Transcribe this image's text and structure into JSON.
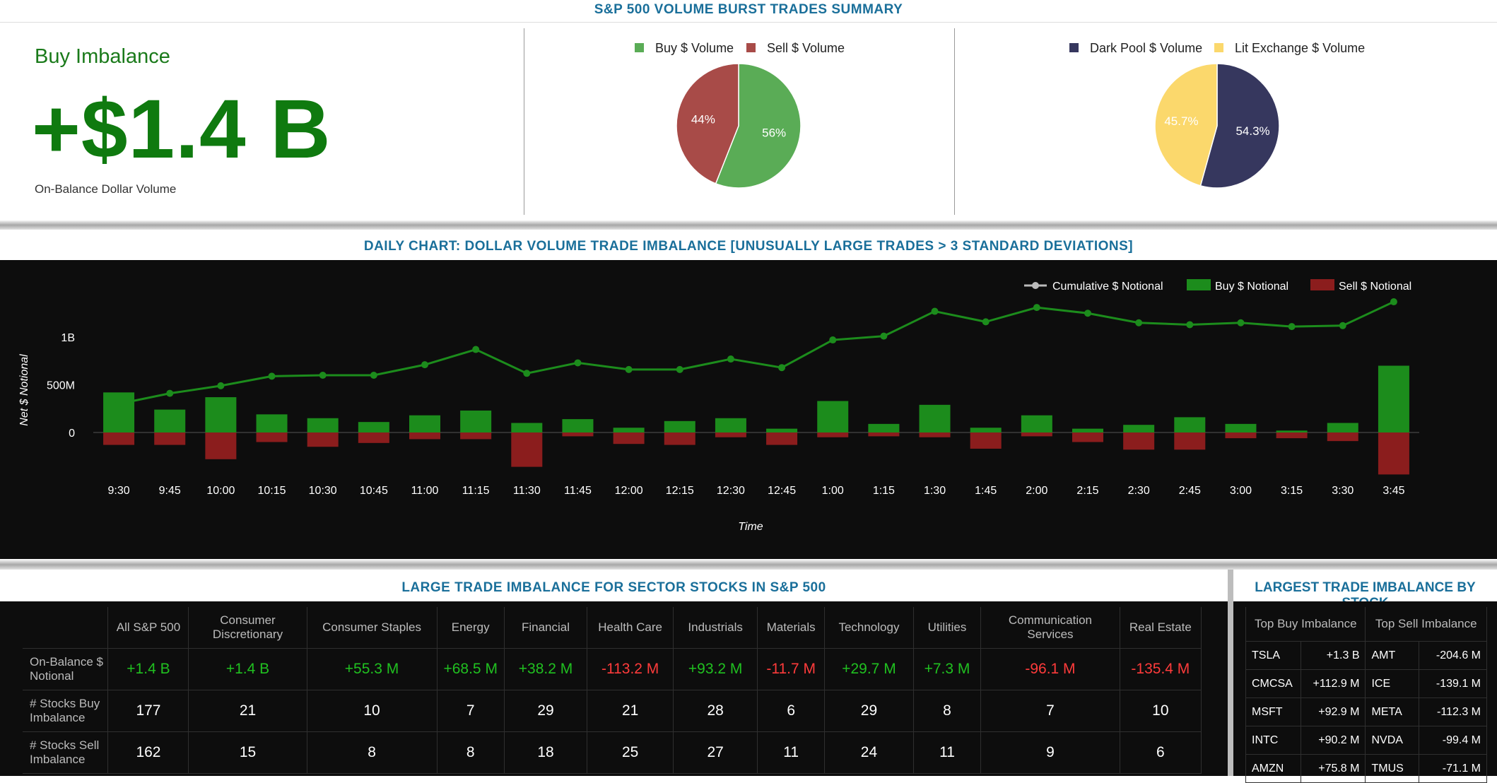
{
  "summary": {
    "title": "S&P 500 VOLUME BURST TRADES SUMMARY",
    "imbalance_label": "Buy Imbalance",
    "imbalance_value": "+$1.4 B",
    "imbalance_caption": "On-Balance Dollar Volume",
    "accent_color": "#1a7a1a"
  },
  "chart_data": [
    {
      "type": "pie",
      "labels": [
        "Buy $ Volume",
        "Sell $ Volume"
      ],
      "values": [
        56,
        44
      ],
      "slice_labels": [
        "56%",
        "44%"
      ],
      "colors": [
        "#5aac56",
        "#a84b48"
      ]
    },
    {
      "type": "pie",
      "labels": [
        "Dark Pool $ Volume",
        "Lit Exchange $ Volume"
      ],
      "values": [
        54.3,
        45.7
      ],
      "slice_labels": [
        "54.3%",
        "45.7%"
      ],
      "colors": [
        "#36375e",
        "#fbd86c"
      ]
    },
    {
      "type": "bar",
      "title": "DAILY CHART: DOLLAR VOLUME TRADE IMBALANCE [UNUSUALLY LARGE TRADES > 3 STANDARD DEVIATIONS]",
      "xlabel": "Time",
      "ylabel": "Net $ Notional",
      "ylim": [
        -300000000,
        1200000000
      ],
      "yticks": [
        {
          "v": 0,
          "label": "0"
        },
        {
          "v": 500000000,
          "label": "500M"
        },
        {
          "v": 1000000000,
          "label": "1B"
        }
      ],
      "grid": false,
      "legend": "top-right",
      "categories": [
        "9:30",
        "9:45",
        "10:00",
        "10:15",
        "10:30",
        "10:45",
        "11:00",
        "11:15",
        "11:30",
        "11:45",
        "12:00",
        "12:15",
        "12:30",
        "12:45",
        "1:00",
        "1:15",
        "1:30",
        "1:45",
        "2:00",
        "2:15",
        "2:30",
        "2:45",
        "3:00",
        "3:15",
        "3:30",
        "3:45"
      ],
      "series": [
        {
          "name": "Cumulative $ Notional",
          "kind": "line",
          "color": "#1c8c1c",
          "values": [
            300000000,
            410000000,
            490000000,
            590000000,
            600000000,
            600000000,
            710000000,
            870000000,
            620000000,
            730000000,
            660000000,
            660000000,
            770000000,
            680000000,
            970000000,
            1010000000,
            1270000000,
            1160000000,
            1310000000,
            1250000000,
            1150000000,
            1130000000,
            1150000000,
            1110000000,
            1120000000,
            1370000000
          ]
        },
        {
          "name": "Buy $ Notional",
          "kind": "bar",
          "color": "#1c8c1c",
          "values": [
            420000000,
            240000000,
            370000000,
            190000000,
            150000000,
            110000000,
            180000000,
            230000000,
            100000000,
            140000000,
            50000000,
            120000000,
            150000000,
            40000000,
            330000000,
            90000000,
            290000000,
            50000000,
            180000000,
            40000000,
            80000000,
            160000000,
            90000000,
            20000000,
            100000000,
            700000000
          ]
        },
        {
          "name": "Sell $ Notional",
          "kind": "bar",
          "color": "#8b1d1d",
          "values": [
            -130000000,
            -130000000,
            -280000000,
            -100000000,
            -150000000,
            -110000000,
            -70000000,
            -70000000,
            -360000000,
            -40000000,
            -120000000,
            -130000000,
            -50000000,
            -130000000,
            -50000000,
            -40000000,
            -50000000,
            -170000000,
            -40000000,
            -100000000,
            -180000000,
            -180000000,
            -60000000,
            -60000000,
            -90000000,
            -440000000
          ]
        }
      ]
    }
  ],
  "sector": {
    "title": "LARGE TRADE IMBALANCE FOR SECTOR STOCKS IN S&P 500",
    "headers": [
      "All S&P 500",
      "Consumer Discretionary",
      "Consumer Staples",
      "Energy",
      "Financial",
      "Health Care",
      "Industrials",
      "Materials",
      "Technology",
      "Utilities",
      "Communication Services",
      "Real Estate"
    ],
    "rows": [
      {
        "label": "On-Balance $ Notional",
        "values": [
          "+1.4 B",
          "+1.4 B",
          "+55.3 M",
          "+68.5 M",
          "+38.2 M",
          "-113.2 M",
          "+93.2 M",
          "-11.7 M",
          "+29.7 M",
          "+7.3 M",
          "-96.1 M",
          "-135.4 M"
        ]
      },
      {
        "label": "# Stocks Buy Imbalance",
        "values": [
          "177",
          "21",
          "10",
          "7",
          "29",
          "21",
          "28",
          "6",
          "29",
          "8",
          "7",
          "10"
        ]
      },
      {
        "label": "# Stocks Sell Imbalance",
        "values": [
          "162",
          "15",
          "8",
          "8",
          "18",
          "25",
          "27",
          "11",
          "24",
          "11",
          "9",
          "6"
        ]
      }
    ]
  },
  "stocks": {
    "title": "LARGEST TRADE IMBALANCE BY STOCK",
    "buy_header": "Top Buy Imbalance",
    "sell_header": "Top Sell Imbalance",
    "rows": [
      {
        "buy_ticker": "TSLA",
        "buy_value": "+1.3 B",
        "sell_ticker": "AMT",
        "sell_value": "-204.6 M"
      },
      {
        "buy_ticker": "CMCSA",
        "buy_value": "+112.9 M",
        "sell_ticker": "ICE",
        "sell_value": "-139.1 M"
      },
      {
        "buy_ticker": "MSFT",
        "buy_value": "+92.9 M",
        "sell_ticker": "META",
        "sell_value": "-112.3 M"
      },
      {
        "buy_ticker": "INTC",
        "buy_value": "+90.2 M",
        "sell_ticker": "NVDA",
        "sell_value": "-99.4 M"
      },
      {
        "buy_ticker": "AMZN",
        "buy_value": "+75.8 M",
        "sell_ticker": "TMUS",
        "sell_value": "-71.1 M"
      }
    ]
  }
}
